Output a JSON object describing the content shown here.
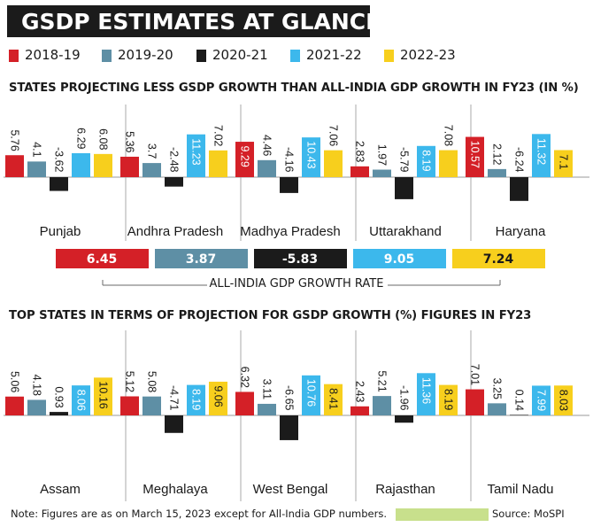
{
  "title": "GSDP ESTIMATES AT GLANCE",
  "colors": {
    "2018-19": "#d42027",
    "2019-20": "#5e8fa5",
    "2020-21": "#1b1b1b",
    "2021-22": "#3cb8ec",
    "2022-23": "#f7cf1d"
  },
  "legend": [
    "2018-19",
    "2019-20",
    "2020-21",
    "2021-22",
    "2022-23"
  ],
  "all_india_label": "ALL-INDIA GDP GROWTH RATE",
  "all_india_values": [
    "6.45",
    "3.87",
    "-5.83",
    "9.05",
    "7.24"
  ],
  "note": "Note: Figures are as on March 15, 2023 except for All-India GDP numbers.",
  "source": "Source: MoSPI",
  "chart_data": [
    {
      "type": "bar",
      "title": "STATES PROJECTING LESS GSDP GROWTH THAN ALL-INDIA GDP GROWTH IN FY23 (IN %)",
      "categories": [
        "Punjab",
        "Andhra Pradesh",
        "Madhya Pradesh",
        "Uttarakhand",
        "Haryana"
      ],
      "series": [
        {
          "name": "2018-19",
          "values": [
            5.76,
            5.36,
            9.29,
            2.83,
            10.57
          ]
        },
        {
          "name": "2019-20",
          "values": [
            4.1,
            3.7,
            4.46,
            1.97,
            2.12
          ]
        },
        {
          "name": "2020-21",
          "values": [
            -3.62,
            -2.48,
            -4.16,
            -5.79,
            -6.24
          ]
        },
        {
          "name": "2021-22",
          "values": [
            6.29,
            11.23,
            10.43,
            8.19,
            11.32
          ]
        },
        {
          "name": "2022-23",
          "values": [
            6.08,
            7.02,
            7.06,
            7.08,
            7.1
          ]
        }
      ],
      "labels": [
        [
          "5.76",
          "4.1",
          "-3.62",
          "6.29",
          "6.08"
        ],
        [
          "5.36",
          "3.7",
          "-2.48",
          "11.23",
          "7.02"
        ],
        [
          "9.29",
          "4.46",
          "-4.16",
          "10.43",
          "7.06"
        ],
        [
          "2.83",
          "1.97",
          "-5.79",
          "8.19",
          "7.08"
        ],
        [
          "10.57",
          "2.12",
          "-6.24",
          "11.32",
          "7.1"
        ]
      ]
    },
    {
      "type": "bar",
      "title": "TOP STATES IN TERMS OF PROJECTION FOR GSDP GROWTH (%) FIGURES IN FY23",
      "categories": [
        "Assam",
        "Meghalaya",
        "West Bengal",
        "Rajasthan",
        "Tamil Nadu"
      ],
      "series": [
        {
          "name": "2018-19",
          "values": [
            5.06,
            5.12,
            6.32,
            2.43,
            7.01
          ]
        },
        {
          "name": "2019-20",
          "values": [
            4.18,
            5.08,
            3.11,
            5.21,
            3.25
          ]
        },
        {
          "name": "2020-21",
          "values": [
            0.93,
            -4.71,
            -6.65,
            -1.96,
            0.14
          ]
        },
        {
          "name": "2021-22",
          "values": [
            8.06,
            8.19,
            10.76,
            11.36,
            7.99
          ]
        },
        {
          "name": "2022-23",
          "values": [
            10.16,
            9.06,
            8.41,
            8.19,
            8.03
          ]
        }
      ],
      "labels": [
        [
          "5.06",
          "4.18",
          "0.93",
          "8.06",
          "10.16"
        ],
        [
          "5.12",
          "5.08",
          "-4.71",
          "8.19",
          "9.06"
        ],
        [
          "6.32",
          "3.11",
          "-6.65",
          "10.76",
          "8.41"
        ],
        [
          "2.43",
          "5.21",
          "-1.96",
          "11.36",
          "8.19"
        ],
        [
          "7.01",
          "3.25",
          "0.14",
          "7.99",
          "8.03"
        ]
      ]
    }
  ]
}
